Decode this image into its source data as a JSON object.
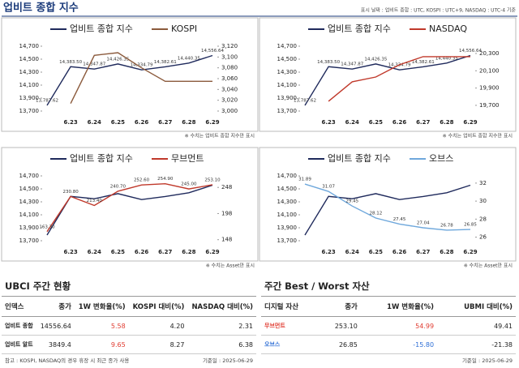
{
  "header": {
    "title": "업비트 종합 지수",
    "note": "표시 날짜 : 업비트 종합 : UTC, KOSPI : UTC+9, NASDAQ : UTC-4 기준"
  },
  "chart_data": [
    {
      "type": "line",
      "categories": [
        null,
        "6.23",
        "6.24",
        "6.25",
        "6.26",
        "6.27",
        "6.28",
        "6.29"
      ],
      "ylim": [
        13700,
        14700
      ],
      "yticks": [
        {
          "value": 13700,
          "label": "13,700"
        },
        {
          "value": 13900,
          "label": "13,900"
        },
        {
          "value": 14100,
          "label": "14,100"
        },
        {
          "value": 14300,
          "label": "14,300"
        },
        {
          "value": 14500,
          "label": "14,500"
        },
        {
          "value": 14700,
          "label": "14,700"
        }
      ],
      "y2lim": [
        3000,
        3120
      ],
      "y2ticks": [
        {
          "value": 3000,
          "label": "3,000"
        },
        {
          "value": 3020,
          "label": "3,020"
        },
        {
          "value": 3040,
          "label": "3,040"
        },
        {
          "value": 3060,
          "label": "3,060"
        },
        {
          "value": 3080,
          "label": "3,080"
        },
        {
          "value": 3100,
          "label": "3,100"
        },
        {
          "value": 3120,
          "label": "3,120"
        }
      ],
      "series": [
        {
          "name": "업비트 종합 지수",
          "color": "#1f2a5c",
          "values": [
            13787.62,
            14383.5,
            14347.87,
            14426.35,
            14334.79,
            14382.61,
            14440.35,
            14556.64
          ],
          "value_labels": [
            "13,787.62",
            "14,383.50",
            "14,347.87",
            "14,426.35",
            "14,334.79",
            "14,382.61",
            "14,440.35",
            "14,556.64"
          ]
        },
        {
          "name": "KOSPI",
          "color": "#8b5a3c",
          "axis": "y2",
          "values": [
            null,
            3014,
            3103,
            3108,
            3080,
            3055,
            3055,
            3055
          ]
        }
      ],
      "note": "※ 수치는 업비트 종합 지수만 표시"
    },
    {
      "type": "line",
      "categories": [
        null,
        "6.23",
        "6.24",
        "6.25",
        "6.26",
        "6.27",
        "6.28",
        "6.29"
      ],
      "ylim": [
        13700,
        14700
      ],
      "yticks": [
        {
          "value": 13700,
          "label": "13,700"
        },
        {
          "value": 13900,
          "label": "13,900"
        },
        {
          "value": 14100,
          "label": "14,100"
        },
        {
          "value": 14300,
          "label": "14,300"
        },
        {
          "value": 14500,
          "label": "14,500"
        },
        {
          "value": 14700,
          "label": "14,700"
        }
      ],
      "y2lim": [
        19634,
        20384
      ],
      "y2ticks": [
        {
          "value": 19700,
          "label": "19,700"
        },
        {
          "value": 19900,
          "label": "19,900"
        },
        {
          "value": 20100,
          "label": "20,100"
        },
        {
          "value": 20300,
          "label": "20,300"
        }
      ],
      "series": [
        {
          "name": "업비트 종합 지수",
          "color": "#1f2a5c",
          "values": [
            13787.62,
            14383.5,
            14347.87,
            14426.35,
            14334.79,
            14382.61,
            14440.35,
            14556.64
          ],
          "value_labels": [
            "13,787.62",
            "14,383.50",
            "14,347.87",
            "14,426.35",
            "14,334.79",
            "14,382.61",
            "14,440.35",
            "14,556.64"
          ]
        },
        {
          "name": "NASDAQ",
          "color": "#c0392b",
          "axis": "y2",
          "values": [
            null,
            19747,
            19972,
            20028,
            20169,
            20263,
            20263,
            20263
          ]
        }
      ],
      "note": "※ 수치는 업비트 종합 지수만 표시"
    },
    {
      "type": "line",
      "categories": [
        null,
        "6.23",
        "6.24",
        "6.25",
        "6.26",
        "6.27",
        "6.28",
        "6.29"
      ],
      "ylim": [
        13700,
        14700
      ],
      "yticks": [
        {
          "value": 13700,
          "label": "13,700"
        },
        {
          "value": 13900,
          "label": "13,900"
        },
        {
          "value": 14100,
          "label": "14,100"
        },
        {
          "value": 14300,
          "label": "14,300"
        },
        {
          "value": 14500,
          "label": "14,500"
        },
        {
          "value": 14700,
          "label": "14,700"
        }
      ],
      "y2lim": [
        146,
        270
      ],
      "y2ticks": [
        148,
        198,
        248
      ],
      "series": [
        {
          "name": "업비트 종합 지수",
          "color": "#1f2a5c",
          "values": [
            13787.62,
            14383.5,
            14347.87,
            14426.35,
            14334.79,
            14382.61,
            14440.35,
            14556.64
          ]
        },
        {
          "name": "무브먼트",
          "color": "#c0392b",
          "axis": "y2",
          "values": [
            163.3,
            230.8,
            213.4,
            240.7,
            252.6,
            254.9,
            245,
            253.1
          ],
          "value_labels": [
            "163.30",
            "230.80",
            "213.40",
            "240.70",
            "252.60",
            "254.90",
            "245.00",
            "253.10"
          ]
        }
      ],
      "note": "※ 수치는 Asset만 표시"
    },
    {
      "type": "line",
      "categories": [
        null,
        "6.23",
        "6.24",
        "6.25",
        "6.26",
        "6.27",
        "6.28",
        "6.29"
      ],
      "ylim": [
        13700,
        14700
      ],
      "yticks": [
        {
          "value": 13700,
          "label": "13,700"
        },
        {
          "value": 13900,
          "label": "13,900"
        },
        {
          "value": 14100,
          "label": "14,100"
        },
        {
          "value": 14300,
          "label": "14,300"
        },
        {
          "value": 14500,
          "label": "14,500"
        },
        {
          "value": 14700,
          "label": "14,700"
        }
      ],
      "y2lim": [
        25.6,
        32.8
      ],
      "y2ticks": [
        26,
        28,
        30,
        32
      ],
      "series": [
        {
          "name": "업비트 종합 지수",
          "color": "#1f2a5c",
          "values": [
            13787.62,
            14383.5,
            14347.87,
            14426.35,
            14334.79,
            14382.61,
            14440.35,
            14556.64
          ]
        },
        {
          "name": "오브스",
          "color": "#6fa8dc",
          "axis": "y2",
          "values": [
            31.89,
            31.07,
            29.45,
            28.12,
            27.45,
            27.04,
            26.78,
            26.85
          ],
          "data_labels": true
        }
      ],
      "note": "※ 수치는 Asset만 표시"
    }
  ],
  "tables": [
    {
      "title": "UBCI 주간 현황",
      "columns": [
        "인덱스",
        "종가",
        "1W 변화율(%)",
        "KOSPI 대비(%)",
        "NASDAQ 대비(%)"
      ],
      "rows": [
        [
          "업비트 종합",
          "14556.64",
          "5.58",
          "4.20",
          "2.31"
        ],
        [
          "업비트 알트",
          "3849.4",
          "9.65",
          "8.27",
          "6.38"
        ]
      ],
      "footnote": "참고 : KOSPI, NASDAQ의 경우 휴장 시 최근 종가 사용",
      "date": "기준일 : 2025-06-29"
    },
    {
      "title": "주간 Best / Worst 자산",
      "columns": [
        "디지털 자산",
        "종가",
        "1W 변화율(%)",
        "UBMI 대비(%)"
      ],
      "rows": [
        [
          "무브먼트",
          "253.10",
          "54.99",
          "49.41"
        ],
        [
          "오브스",
          "26.85",
          "-15.80",
          "-21.38"
        ]
      ],
      "date": "기준일 : 2025-06-29"
    }
  ]
}
